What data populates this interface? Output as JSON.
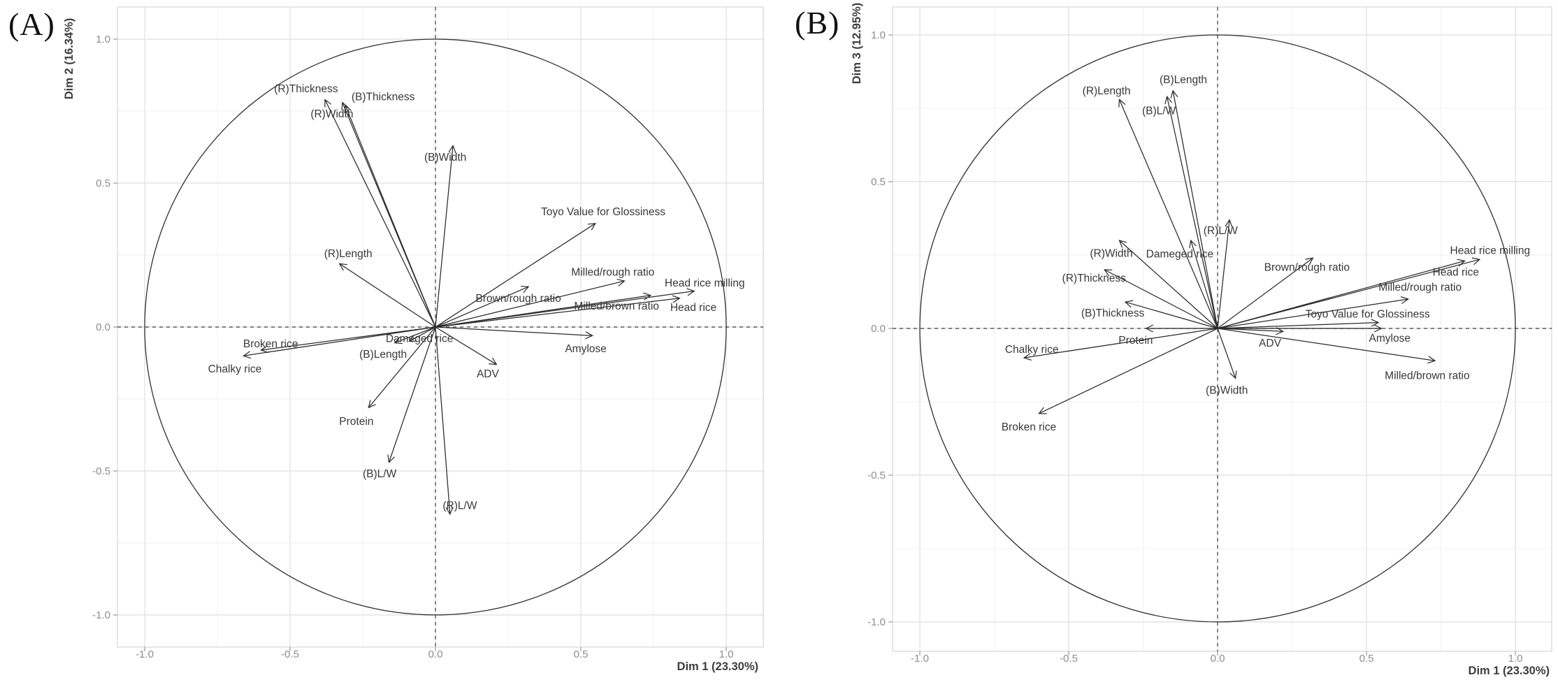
{
  "style": {
    "background": "#ffffff",
    "grid_major": "#e3e3e3",
    "grid_minor": "#f1f1f1",
    "plot_border": "#d4d4d4",
    "tick_mark": "#9a9a9a",
    "tick_text": "#8c8c93",
    "axis_title_text": "#3d3d3d",
    "var_label_text": "#383838",
    "arrow": "#2a2a2a",
    "circle": "#2f2f2f",
    "dashed_axis": "#3c3c3c"
  },
  "chart_data": [
    {
      "type": "scatter",
      "subtype": "pca_variable_correlation_circle",
      "panel_label": "(A)",
      "xlabel": "Dim 1 (23.30%)",
      "ylabel": "Dim 2 (16.34%)",
      "xlim": [
        -1,
        1
      ],
      "ylim": [
        -1,
        1
      ],
      "xticks": [
        -1.0,
        -0.5,
        0.0,
        0.5,
        1.0
      ],
      "yticks": [
        -1.0,
        -0.5,
        0.0,
        0.5,
        1.0
      ],
      "grid": true,
      "unit_circle": true,
      "legend": "none",
      "points": [
        {
          "label": "(R)Thickness",
          "x": -0.38,
          "y": 0.79,
          "label_x": -0.445,
          "label_y": 0.828
        },
        {
          "label": "(B)Thickness",
          "x": -0.32,
          "y": 0.78,
          "label_x": -0.18,
          "label_y": 0.8
        },
        {
          "label": "(R)Width",
          "x": -0.31,
          "y": 0.77,
          "label_x": -0.356,
          "label_y": 0.74
        },
        {
          "label": "(B)Width",
          "x": 0.06,
          "y": 0.63,
          "label_x": 0.034,
          "label_y": 0.59
        },
        {
          "label": "Toyo Value for Glossiness",
          "x": 0.55,
          "y": 0.36,
          "label_x": 0.577,
          "label_y": 0.4
        },
        {
          "label": "(R)Length",
          "x": -0.33,
          "y": 0.22,
          "label_x": -0.3,
          "label_y": 0.255
        },
        {
          "label": "Milled/rough ratio",
          "x": 0.65,
          "y": 0.16,
          "label_x": 0.61,
          "label_y": 0.19
        },
        {
          "label": "Brown/rough ratio",
          "x": 0.32,
          "y": 0.14,
          "label_x": 0.285,
          "label_y": 0.1
        },
        {
          "label": "Head rice milling",
          "x": 0.89,
          "y": 0.125,
          "label_x": 0.926,
          "label_y": 0.153
        },
        {
          "label": "Milled/brown ratio",
          "x": 0.74,
          "y": 0.11,
          "label_x": 0.623,
          "label_y": 0.073
        },
        {
          "label": "Head rice",
          "x": 0.84,
          "y": 0.1,
          "label_x": 0.887,
          "label_y": 0.068
        },
        {
          "label": "Amylose",
          "x": 0.54,
          "y": -0.03,
          "label_x": 0.517,
          "label_y": -0.075
        },
        {
          "label": "Dameged rice",
          "x": -0.09,
          "y": -0.05,
          "label_x": -0.055,
          "label_y": -0.04
        },
        {
          "label": "(B)Length",
          "x": -0.14,
          "y": -0.055,
          "label_x": -0.18,
          "label_y": -0.095
        },
        {
          "label": "Broken rice",
          "x": -0.6,
          "y": -0.08,
          "label_x": -0.567,
          "label_y": -0.058
        },
        {
          "label": "Chalky rice",
          "x": -0.66,
          "y": -0.1,
          "label_x": -0.69,
          "label_y": -0.146
        },
        {
          "label": "ADV",
          "x": 0.21,
          "y": -0.13,
          "label_x": 0.18,
          "label_y": -0.163
        },
        {
          "label": "Protein",
          "x": -0.23,
          "y": -0.28,
          "label_x": -0.272,
          "label_y": -0.328
        },
        {
          "label": "(B)L/W",
          "x": -0.16,
          "y": -0.47,
          "label_x": -0.192,
          "label_y": -0.51
        },
        {
          "label": "(R)L/W",
          "x": 0.05,
          "y": -0.65,
          "label_x": 0.084,
          "label_y": -0.62
        }
      ]
    },
    {
      "type": "scatter",
      "subtype": "pca_variable_correlation_circle",
      "panel_label": "(B)",
      "xlabel": "Dim 1 (23.30%)",
      "ylabel": "Dim 3 (12.95%)",
      "xlim": [
        -1,
        1
      ],
      "ylim": [
        -1,
        1
      ],
      "xticks": [
        -1.0,
        -0.5,
        0.0,
        0.5,
        1.0
      ],
      "yticks": [
        -1.0,
        -0.5,
        0.0,
        0.5,
        1.0
      ],
      "grid": true,
      "unit_circle": true,
      "legend": "none",
      "points": [
        {
          "label": "(B)Length",
          "x": -0.15,
          "y": 0.81,
          "label_x": -0.115,
          "label_y": 0.848
        },
        {
          "label": "(B)L/W",
          "x": -0.17,
          "y": 0.79,
          "label_x": -0.197,
          "label_y": 0.742
        },
        {
          "label": "(R)Length",
          "x": -0.33,
          "y": 0.78,
          "label_x": -0.373,
          "label_y": 0.81
        },
        {
          "label": "(R)L/W",
          "x": 0.04,
          "y": 0.37,
          "label_x": 0.01,
          "label_y": 0.333
        },
        {
          "label": "(R)Width",
          "x": -0.33,
          "y": 0.3,
          "label_x": -0.357,
          "label_y": 0.256
        },
        {
          "label": "Dameged rice",
          "x": -0.09,
          "y": 0.3,
          "label_x": -0.127,
          "label_y": 0.254
        },
        {
          "label": "Brown/rough ratio",
          "x": 0.32,
          "y": 0.24,
          "label_x": 0.3,
          "label_y": 0.208
        },
        {
          "label": "Head rice milling",
          "x": 0.88,
          "y": 0.235,
          "label_x": 0.915,
          "label_y": 0.265
        },
        {
          "label": "Head rice",
          "x": 0.83,
          "y": 0.23,
          "label_x": 0.8,
          "label_y": 0.192
        },
        {
          "label": "(R)Thickness",
          "x": -0.38,
          "y": 0.2,
          "label_x": -0.415,
          "label_y": 0.171
        },
        {
          "label": "Milled/rough ratio",
          "x": 0.64,
          "y": 0.1,
          "label_x": 0.68,
          "label_y": 0.14
        },
        {
          "label": "(B)Thickness",
          "x": -0.31,
          "y": 0.09,
          "label_x": -0.352,
          "label_y": 0.052
        },
        {
          "label": "Toyo Value for Glossiness",
          "x": 0.54,
          "y": 0.02,
          "label_x": 0.504,
          "label_y": 0.049
        },
        {
          "label": "Amylose",
          "x": 0.55,
          "y": 0.0,
          "label_x": 0.578,
          "label_y": -0.033
        },
        {
          "label": "Protein",
          "x": -0.24,
          "y": 0.0,
          "label_x": -0.275,
          "label_y": -0.04
        },
        {
          "label": "ADV",
          "x": 0.22,
          "y": -0.01,
          "label_x": 0.176,
          "label_y": -0.05
        },
        {
          "label": "Chalky rice",
          "x": -0.65,
          "y": -0.1,
          "label_x": -0.624,
          "label_y": -0.071
        },
        {
          "label": "Milled/brown ratio",
          "x": 0.73,
          "y": -0.11,
          "label_x": 0.704,
          "label_y": -0.161
        },
        {
          "label": "(B)Width",
          "x": 0.06,
          "y": -0.17,
          "label_x": 0.031,
          "label_y": -0.211
        },
        {
          "label": "Broken rice",
          "x": -0.6,
          "y": -0.29,
          "label_x": -0.634,
          "label_y": -0.336
        }
      ]
    }
  ]
}
